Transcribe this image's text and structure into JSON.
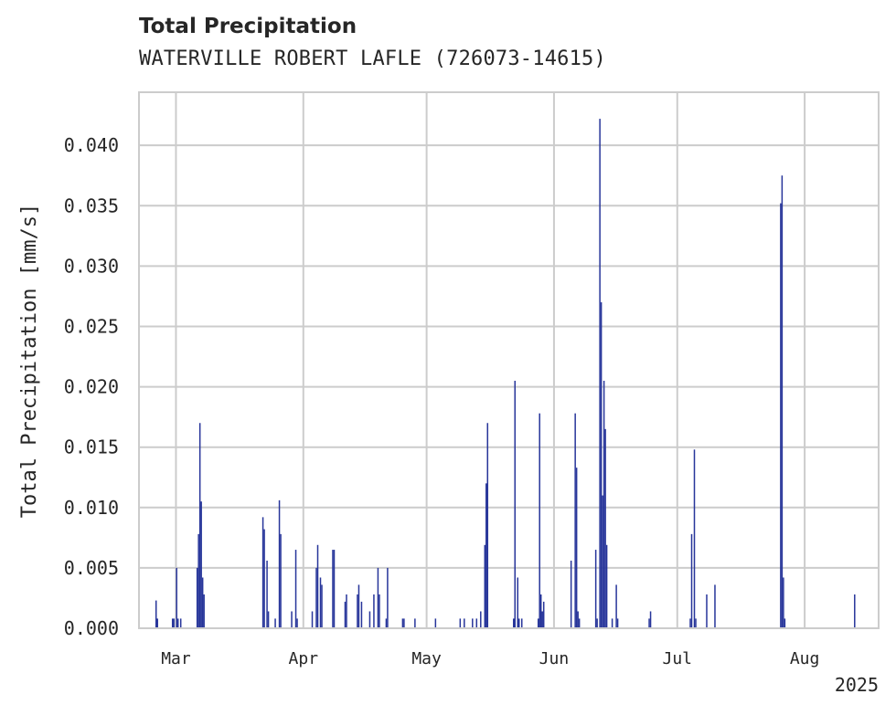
{
  "chart_data": {
    "type": "bar",
    "title": "Total Precipitation",
    "subtitle": "WATERVILLE ROBERT LAFLE (726073-14615)",
    "xlabel": "",
    "ylabel": "Total Precipitation [mm/s]",
    "year_label": "2025",
    "ylim": [
      0,
      0.0444
    ],
    "xlim": [
      "2025-02-20",
      "2025-08-19"
    ],
    "y_ticks": [
      "0.000",
      "0.005",
      "0.010",
      "0.015",
      "0.020",
      "0.025",
      "0.030",
      "0.035",
      "0.040"
    ],
    "x_ticks": [
      {
        "date": "2025-03-01",
        "label": "Mar"
      },
      {
        "date": "2025-04-01",
        "label": "Apr"
      },
      {
        "date": "2025-05-01",
        "label": "May"
      },
      {
        "date": "2025-06-01",
        "label": "Jun"
      },
      {
        "date": "2025-07-01",
        "label": "Jul"
      },
      {
        "date": "2025-08-01",
        "label": "Aug"
      }
    ],
    "grid": true,
    "bar_color": "#27359a",
    "series": [
      {
        "points": [
          [
            "2025-02-24",
            0.0023
          ],
          [
            "2025-02-24",
            0.0008
          ],
          [
            "2025-02-28",
            0.0008
          ],
          [
            "2025-02-28",
            0.0008
          ],
          [
            "2025-03-01",
            0.005
          ],
          [
            "2025-03-01",
            0.0008
          ],
          [
            "2025-03-02",
            0.0008
          ],
          [
            "2025-03-06",
            0.005
          ],
          [
            "2025-03-06",
            0.0078
          ],
          [
            "2025-03-06",
            0.017
          ],
          [
            "2025-03-07",
            0.0105
          ],
          [
            "2025-03-07",
            0.0042
          ],
          [
            "2025-03-07",
            0.0028
          ],
          [
            "2025-03-22",
            0.0092
          ],
          [
            "2025-03-22",
            0.0082
          ],
          [
            "2025-03-23",
            0.0056
          ],
          [
            "2025-03-23",
            0.0014
          ],
          [
            "2025-03-25",
            0.0008
          ],
          [
            "2025-03-26",
            0.0106
          ],
          [
            "2025-03-26",
            0.0078
          ],
          [
            "2025-03-29",
            0.0014
          ],
          [
            "2025-03-30",
            0.0065
          ],
          [
            "2025-03-30",
            0.0008
          ],
          [
            "2025-04-03",
            0.0014
          ],
          [
            "2025-04-04",
            0.005
          ],
          [
            "2025-04-04",
            0.0069
          ],
          [
            "2025-04-05",
            0.0042
          ],
          [
            "2025-04-05",
            0.0036
          ],
          [
            "2025-04-08",
            0.0065
          ],
          [
            "2025-04-08",
            0.0065
          ],
          [
            "2025-04-11",
            0.0022
          ],
          [
            "2025-04-11",
            0.0028
          ],
          [
            "2025-04-14",
            0.0028
          ],
          [
            "2025-04-14",
            0.0036
          ],
          [
            "2025-04-15",
            0.0022
          ],
          [
            "2025-04-17",
            0.0014
          ],
          [
            "2025-04-18",
            0.0028
          ],
          [
            "2025-04-19",
            0.005
          ],
          [
            "2025-04-19",
            0.0028
          ],
          [
            "2025-04-21",
            0.0008
          ],
          [
            "2025-04-21",
            0.005
          ],
          [
            "2025-04-25",
            0.0008
          ],
          [
            "2025-04-25",
            0.0008
          ],
          [
            "2025-04-28",
            0.0008
          ],
          [
            "2025-05-03",
            0.0008
          ],
          [
            "2025-05-09",
            0.0008
          ],
          [
            "2025-05-10",
            0.0008
          ],
          [
            "2025-05-12",
            0.0008
          ],
          [
            "2025-05-13",
            0.0008
          ],
          [
            "2025-05-14",
            0.0014
          ],
          [
            "2025-05-15",
            0.0069
          ],
          [
            "2025-05-15",
            0.012
          ],
          [
            "2025-05-15",
            0.017
          ],
          [
            "2025-05-22",
            0.0008
          ],
          [
            "2025-05-22",
            0.0205
          ],
          [
            "2025-05-23",
            0.0042
          ],
          [
            "2025-05-23",
            0.0008
          ],
          [
            "2025-05-24",
            0.0008
          ],
          [
            "2025-05-28",
            0.0008
          ],
          [
            "2025-05-28",
            0.0178
          ],
          [
            "2025-05-28",
            0.0028
          ],
          [
            "2025-05-29",
            0.0014
          ],
          [
            "2025-05-29",
            0.0022
          ],
          [
            "2025-06-05",
            0.0056
          ],
          [
            "2025-06-06",
            0.0178
          ],
          [
            "2025-06-06",
            0.0133
          ],
          [
            "2025-06-06",
            0.0014
          ],
          [
            "2025-06-07",
            0.0008
          ],
          [
            "2025-06-11",
            0.0065
          ],
          [
            "2025-06-11",
            0.0008
          ],
          [
            "2025-06-12",
            0.0422
          ],
          [
            "2025-06-12",
            0.027
          ],
          [
            "2025-06-12",
            0.011
          ],
          [
            "2025-06-13",
            0.0205
          ],
          [
            "2025-06-13",
            0.0165
          ],
          [
            "2025-06-13",
            0.0069
          ],
          [
            "2025-06-15",
            0.0008
          ],
          [
            "2025-06-16",
            0.0036
          ],
          [
            "2025-06-16",
            0.0008
          ],
          [
            "2025-06-24",
            0.0008
          ],
          [
            "2025-06-24",
            0.0014
          ],
          [
            "2025-07-04",
            0.0008
          ],
          [
            "2025-07-04",
            0.0078
          ],
          [
            "2025-07-05",
            0.0148
          ],
          [
            "2025-07-05",
            0.0008
          ],
          [
            "2025-07-08",
            0.0028
          ],
          [
            "2025-07-10",
            0.0036
          ],
          [
            "2025-07-26",
            0.0352
          ],
          [
            "2025-07-26",
            0.0375
          ],
          [
            "2025-07-26",
            0.0042
          ],
          [
            "2025-07-27",
            0.0008
          ],
          [
            "2025-08-13",
            0.0028
          ]
        ]
      }
    ]
  }
}
